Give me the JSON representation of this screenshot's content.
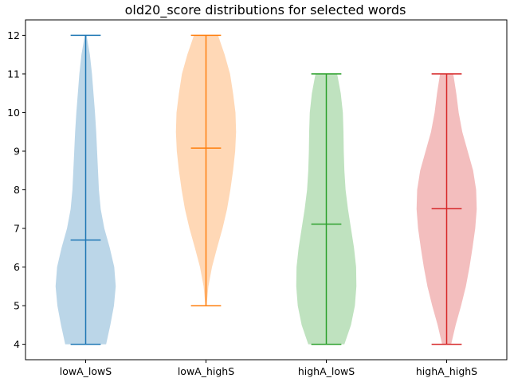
{
  "chart_data": {
    "type": "violin",
    "title": "old20_score distributions for selected words",
    "xlabel": "",
    "ylabel": "",
    "categories": [
      "lowA_lowS",
      "lowA_highS",
      "highA_lowS",
      "highA_highS"
    ],
    "ylim": [
      3.6,
      12.4
    ],
    "yticks": [
      4,
      5,
      6,
      7,
      8,
      9,
      10,
      11,
      12
    ],
    "grid": false,
    "series": [
      {
        "color": "#1f77b4",
        "min": 4,
        "max": 12,
        "mean": 6.7,
        "density": [
          [
            4.0,
            0.68
          ],
          [
            4.5,
            0.82
          ],
          [
            5.0,
            0.94
          ],
          [
            5.5,
            1.0
          ],
          [
            6.0,
            0.95
          ],
          [
            6.5,
            0.8
          ],
          [
            7.0,
            0.62
          ],
          [
            7.5,
            0.5
          ],
          [
            8.0,
            0.44
          ],
          [
            8.5,
            0.41
          ],
          [
            9.0,
            0.38
          ],
          [
            9.5,
            0.35
          ],
          [
            10.0,
            0.31
          ],
          [
            10.5,
            0.26
          ],
          [
            11.0,
            0.21
          ],
          [
            11.5,
            0.14
          ],
          [
            12.0,
            0.03
          ]
        ]
      },
      {
        "color": "#ff7f0e",
        "min": 5,
        "max": 12,
        "mean": 9.08,
        "density": [
          [
            5.0,
            0.02
          ],
          [
            5.5,
            0.08
          ],
          [
            6.0,
            0.2
          ],
          [
            6.5,
            0.37
          ],
          [
            7.0,
            0.55
          ],
          [
            7.5,
            0.7
          ],
          [
            8.0,
            0.81
          ],
          [
            8.5,
            0.9
          ],
          [
            9.0,
            0.97
          ],
          [
            9.5,
            1.0
          ],
          [
            10.0,
            0.98
          ],
          [
            10.5,
            0.9
          ],
          [
            11.0,
            0.8
          ],
          [
            11.5,
            0.62
          ],
          [
            12.0,
            0.4
          ]
        ]
      },
      {
        "color": "#2ca02c",
        "min": 4,
        "max": 11,
        "mean": 7.11,
        "density": [
          [
            4.0,
            0.6
          ],
          [
            4.5,
            0.82
          ],
          [
            5.0,
            0.95
          ],
          [
            5.5,
            1.0
          ],
          [
            6.0,
            0.99
          ],
          [
            6.5,
            0.92
          ],
          [
            7.0,
            0.82
          ],
          [
            7.5,
            0.72
          ],
          [
            8.0,
            0.64
          ],
          [
            8.5,
            0.6
          ],
          [
            9.0,
            0.58
          ],
          [
            9.5,
            0.57
          ],
          [
            10.0,
            0.55
          ],
          [
            10.5,
            0.48
          ],
          [
            11.0,
            0.36
          ]
        ]
      },
      {
        "color": "#d62728",
        "min": 4,
        "max": 11,
        "mean": 7.51,
        "density": [
          [
            4.0,
            0.15
          ],
          [
            4.5,
            0.3
          ],
          [
            5.0,
            0.48
          ],
          [
            5.5,
            0.64
          ],
          [
            6.0,
            0.76
          ],
          [
            6.5,
            0.86
          ],
          [
            7.0,
            0.95
          ],
          [
            7.5,
            1.0
          ],
          [
            8.0,
            0.98
          ],
          [
            8.5,
            0.88
          ],
          [
            9.0,
            0.7
          ],
          [
            9.5,
            0.52
          ],
          [
            10.0,
            0.4
          ],
          [
            10.5,
            0.32
          ],
          [
            11.0,
            0.22
          ]
        ]
      }
    ]
  }
}
